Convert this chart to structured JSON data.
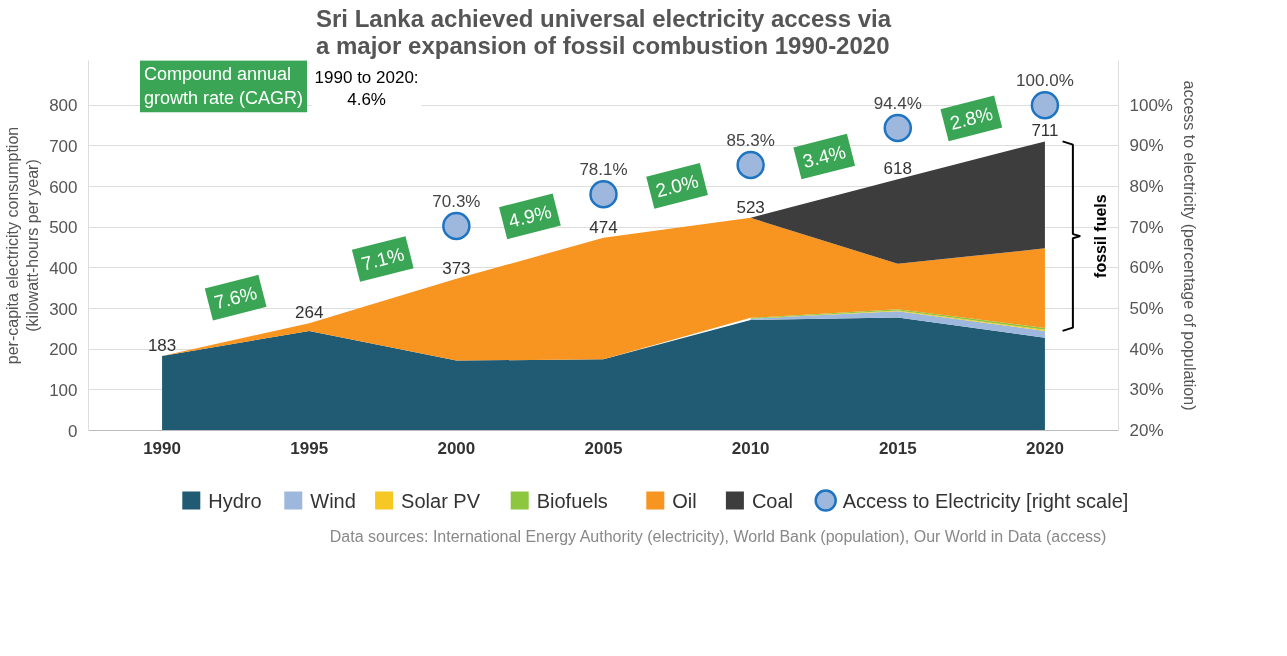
{
  "chart_data": {
    "type": "area",
    "stacked": true,
    "title": "Sri Lanka achieved universal electricity access via\na major expansion of fossil combustion 1990-2020",
    "ylabel": "per-capita electricity consumption\n(kilowatt-hours per year)",
    "y2label": "access to electricity (percentage of population)",
    "x": [
      1990,
      1995,
      2000,
      2005,
      2010,
      2015,
      2020
    ],
    "xlim": [
      1987.5,
      2022.5
    ],
    "xticks": [
      1990,
      1995,
      2000,
      2005,
      2010,
      2015,
      2020
    ],
    "ylim": [
      0,
      910
    ],
    "yticks": [
      0,
      100,
      200,
      300,
      400,
      500,
      600,
      700,
      800
    ],
    "y2lim": [
      20,
      111
    ],
    "y2ticks": [
      {
        "value": 20,
        "label": "20%"
      },
      {
        "value": 30,
        "label": "30%"
      },
      {
        "value": 40,
        "label": "40%"
      },
      {
        "value": 50,
        "label": "50%"
      },
      {
        "value": 60,
        "label": "60%"
      },
      {
        "value": 70,
        "label": "70%"
      },
      {
        "value": 80,
        "label": "80%"
      },
      {
        "value": 90,
        "label": "90%"
      },
      {
        "value": 100,
        "label": "100%"
      }
    ],
    "grid": "y",
    "legend": "bottom",
    "series": [
      {
        "name": "Hydro",
        "color": "#215a73",
        "values": [
          183,
          245,
          172,
          175,
          272,
          278,
          228
        ]
      },
      {
        "name": "Wind",
        "color": "#9db8dc",
        "values": [
          null,
          null,
          null,
          null,
          3,
          15,
          17
        ]
      },
      {
        "name": "Solar PV",
        "color": "#f6c823",
        "values": [
          null,
          null,
          null,
          null,
          0,
          2,
          3
        ]
      },
      {
        "name": "Biofuels",
        "color": "#8dc63f",
        "values": [
          null,
          null,
          null,
          null,
          2,
          3,
          4
        ]
      },
      {
        "name": "Oil",
        "color": "#f89420",
        "values": [
          0,
          19,
          201,
          299,
          246,
          112,
          196
        ]
      },
      {
        "name": "Coal",
        "color": "#3d3d3d",
        "values": [
          null,
          null,
          null,
          null,
          0,
          208,
          263
        ]
      },
      {
        "name": "Access to Electricity [right scale]",
        "type": "scatter",
        "axis": "y2",
        "marker": "circle",
        "color": "#9db8dc",
        "values": [
          null,
          null,
          70.3,
          78.1,
          85.3,
          94.4,
          100.0
        ],
        "value_labels": [
          null,
          null,
          "70.3%",
          "78.1%",
          "85.3%",
          "94.4%",
          "100.0%"
        ]
      }
    ],
    "totals": [
      "183",
      "264",
      "373",
      "474",
      "523",
      "618",
      "711"
    ],
    "annotations": [
      "Compound annual\ngrowth rate (CAGR)",
      "1990 to 2020:\n4.6%",
      "7.6%",
      "7.1%",
      "4.9%",
      "2.0%",
      "3.4%",
      "2.8%",
      "fossil fuels",
      "Data sources: International Energy Authority (electricity), World Bank (population), Our World in Data (access)"
    ]
  }
}
